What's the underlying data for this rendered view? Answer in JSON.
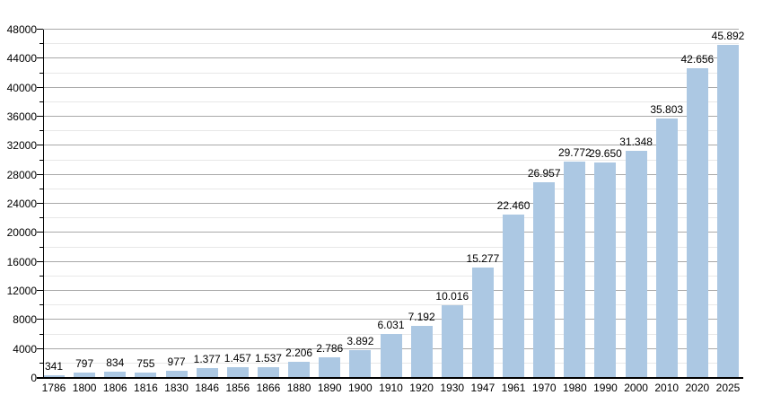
{
  "chart_data": {
    "type": "bar",
    "title": "",
    "xlabel": "",
    "ylabel": "",
    "legend": "none",
    "grid": "horizontal major and minor gridlines",
    "categories": [
      "1786",
      "1800",
      "1806",
      "1816",
      "1830",
      "1846",
      "1856",
      "1866",
      "1880",
      "1890",
      "1900",
      "1910",
      "1920",
      "1930",
      "1947",
      "1961",
      "1970",
      "1980",
      "1990",
      "2000",
      "2010",
      "2020",
      "2025"
    ],
    "values": [
      341,
      797,
      834,
      755,
      977,
      1377,
      1457,
      1537,
      2206,
      2786,
      3892,
      6031,
      7192,
      10016,
      15277,
      22460,
      26957,
      29772,
      29650,
      31348,
      35803,
      42656,
      45892
    ],
    "value_labels": [
      "341",
      "797",
      "834",
      "755",
      "977",
      "1.377",
      "1.457",
      "1.537",
      "2.206",
      "2.786",
      "3.892",
      "6.031",
      "7.192",
      "10.016",
      "15.277",
      "22.460",
      "26.957",
      "29.772",
      "29.650",
      "31.348",
      "35.803",
      "42.656",
      "45.892"
    ],
    "ylim": [
      0,
      48000
    ],
    "y_major_step": 4000,
    "y_minor_step": 2000,
    "y_tick_labels": [
      "0",
      "4000",
      "8000",
      "12000",
      "16000",
      "20000",
      "24000",
      "28000",
      "32000",
      "36000",
      "40000",
      "44000",
      "48000"
    ]
  },
  "colors": {
    "bar": "#ACC8E3",
    "major_gridline": "#A9A9A9",
    "minor_gridline": "#E8E8E8",
    "axis": "#000000",
    "text": "#000000",
    "background": "#FFFFFF"
  }
}
